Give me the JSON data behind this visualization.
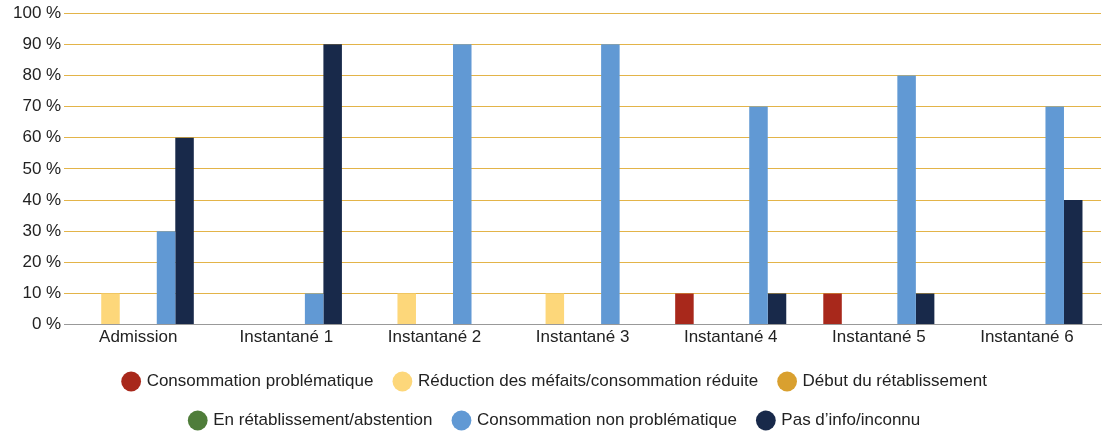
{
  "chart_data": {
    "type": "bar",
    "categories": [
      "Admission",
      "Instantané 1",
      "Instantané 2",
      "Instantané 3",
      "Instantané 4",
      "Instantané 5",
      "Instantané 6"
    ],
    "series": [
      {
        "name": "Consommation problématique",
        "color": "#a8281b",
        "values": [
          0,
          0,
          0,
          0,
          10,
          10,
          0
        ]
      },
      {
        "name": "Réduction des méfaits/consommation réduite",
        "color": "#fdd77a",
        "values": [
          10,
          0,
          10,
          10,
          0,
          0,
          0
        ]
      },
      {
        "name": "Début du rétablissement",
        "color": "#d9a02f",
        "values": [
          0,
          0,
          0,
          0,
          0,
          0,
          0
        ]
      },
      {
        "name": "En rétablissement/abstention",
        "color": "#4f7d3a",
        "values": [
          0,
          0,
          0,
          0,
          0,
          0,
          0
        ]
      },
      {
        "name": "Consommation non problématique",
        "color": "#6199d4",
        "values": [
          30,
          10,
          90,
          90,
          70,
          80,
          70
        ]
      },
      {
        "name": "Pas d’info/inconnu",
        "color": "#18294a",
        "values": [
          60,
          90,
          0,
          0,
          10,
          10,
          40
        ]
      }
    ],
    "ylim": [
      0,
      100
    ],
    "yticks": [
      {
        "value": 0,
        "label": "0 %"
      },
      {
        "value": 10,
        "label": "10 %"
      },
      {
        "value": 20,
        "label": "20 %"
      },
      {
        "value": 30,
        "label": "30 %"
      },
      {
        "value": 40,
        "label": "40 %"
      },
      {
        "value": 50,
        "label": "50 %"
      },
      {
        "value": 60,
        "label": "60 %"
      },
      {
        "value": 70,
        "label": "70 %"
      },
      {
        "value": 80,
        "label": "80 %"
      },
      {
        "value": 90,
        "label": "90 %"
      },
      {
        "value": 100,
        "label": "100 %"
      }
    ],
    "grid": "y",
    "legend": "bottom"
  }
}
